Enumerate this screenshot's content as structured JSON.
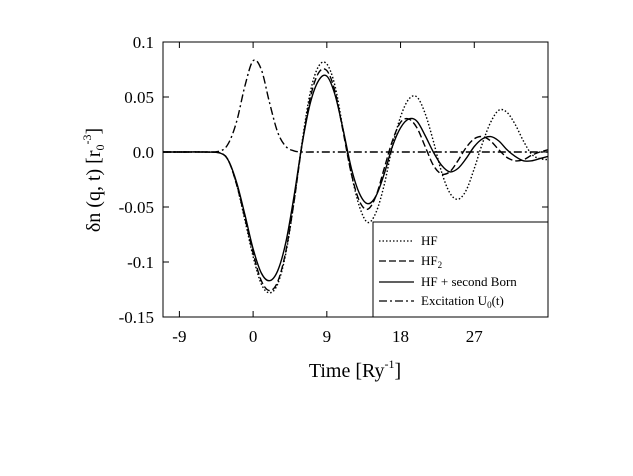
{
  "chart_data": {
    "type": "line",
    "title": "",
    "xlabel": "Time [Ry",
    "xlabel_sup": "-1",
    "xlabel_end": "]",
    "ylabel": "δn (q, t) [r",
    "ylabel_sub": "0",
    "ylabel_sup": "-3",
    "ylabel_end": "]",
    "xlim": [
      -11,
      36
    ],
    "ylim": [
      -0.15,
      0.1
    ],
    "xticks": [
      -9,
      0,
      9,
      18,
      27
    ],
    "xtick_labels": [
      "-9",
      "0",
      "9",
      "18",
      "27"
    ],
    "yticks": [
      0.1,
      0.05,
      0.0,
      -0.05,
      -0.1,
      -0.15
    ],
    "ytick_labels": [
      "0.1",
      "0.05",
      "0.0",
      "-0.05",
      "-0.1",
      "-0.15"
    ],
    "grid": false,
    "legend_position": "bottom-right",
    "x": [
      -11,
      -8,
      -6,
      -4,
      -3,
      -2,
      -1,
      0,
      1,
      2,
      3,
      4,
      5,
      6,
      7,
      8,
      9,
      10,
      11,
      12,
      13,
      14,
      15,
      16,
      17,
      18,
      19,
      20,
      21,
      22,
      23,
      24,
      25,
      26,
      27,
      28,
      29,
      30,
      31,
      32,
      33,
      34,
      35,
      36
    ],
    "series": [
      {
        "name": "HF",
        "style": "dotted",
        "values": [
          0,
          0,
          0,
          -0.001,
          -0.008,
          -0.03,
          -0.062,
          -0.095,
          -0.12,
          -0.128,
          -0.12,
          -0.092,
          -0.045,
          0.01,
          0.055,
          0.078,
          0.08,
          0.06,
          0.02,
          -0.02,
          -0.05,
          -0.064,
          -0.055,
          -0.03,
          0.005,
          0.032,
          0.048,
          0.05,
          0.035,
          0.01,
          -0.018,
          -0.037,
          -0.043,
          -0.035,
          -0.015,
          0.008,
          0.027,
          0.038,
          0.036,
          0.025,
          0.01,
          -0.002,
          -0.006,
          -0.007
        ]
      },
      {
        "name": "HF",
        "name_sub": "2",
        "style": "dashed",
        "values": [
          0,
          0,
          0,
          -0.001,
          -0.008,
          -0.03,
          -0.06,
          -0.092,
          -0.117,
          -0.126,
          -0.118,
          -0.09,
          -0.045,
          0.008,
          0.05,
          0.072,
          0.074,
          0.055,
          0.018,
          -0.02,
          -0.045,
          -0.052,
          -0.04,
          -0.015,
          0.01,
          0.027,
          0.03,
          0.022,
          0.005,
          -0.012,
          -0.02,
          -0.018,
          -0.008,
          0.004,
          0.012,
          0.014,
          0.01,
          0.002,
          -0.005,
          -0.008,
          -0.007,
          -0.003,
          0,
          0.002
        ]
      },
      {
        "name": "HF + second Born",
        "style": "solid",
        "values": [
          0,
          0,
          0,
          -0.001,
          -0.008,
          -0.028,
          -0.057,
          -0.088,
          -0.11,
          -0.117,
          -0.108,
          -0.082,
          -0.04,
          0.008,
          0.045,
          0.065,
          0.069,
          0.052,
          0.02,
          -0.015,
          -0.038,
          -0.047,
          -0.04,
          -0.02,
          0.005,
          0.022,
          0.03,
          0.028,
          0.015,
          0,
          -0.012,
          -0.018,
          -0.015,
          -0.006,
          0.005,
          0.012,
          0.014,
          0.01,
          0.002,
          -0.004,
          -0.008,
          -0.008,
          -0.006,
          -0.004
        ]
      },
      {
        "name": "Excitation U",
        "name_sub": "0",
        "name_end": "(t)",
        "style": "dashdot",
        "values": [
          0,
          0,
          0,
          0.001,
          0.008,
          0.028,
          0.06,
          0.083,
          0.075,
          0.045,
          0.018,
          0.005,
          0.001,
          0,
          0,
          0,
          0,
          0,
          0,
          0,
          0,
          0,
          0,
          0,
          0,
          0,
          0,
          0,
          0,
          0,
          0,
          0,
          0,
          0,
          0,
          0,
          0,
          0,
          0,
          0,
          0,
          0,
          0,
          0
        ]
      }
    ]
  }
}
